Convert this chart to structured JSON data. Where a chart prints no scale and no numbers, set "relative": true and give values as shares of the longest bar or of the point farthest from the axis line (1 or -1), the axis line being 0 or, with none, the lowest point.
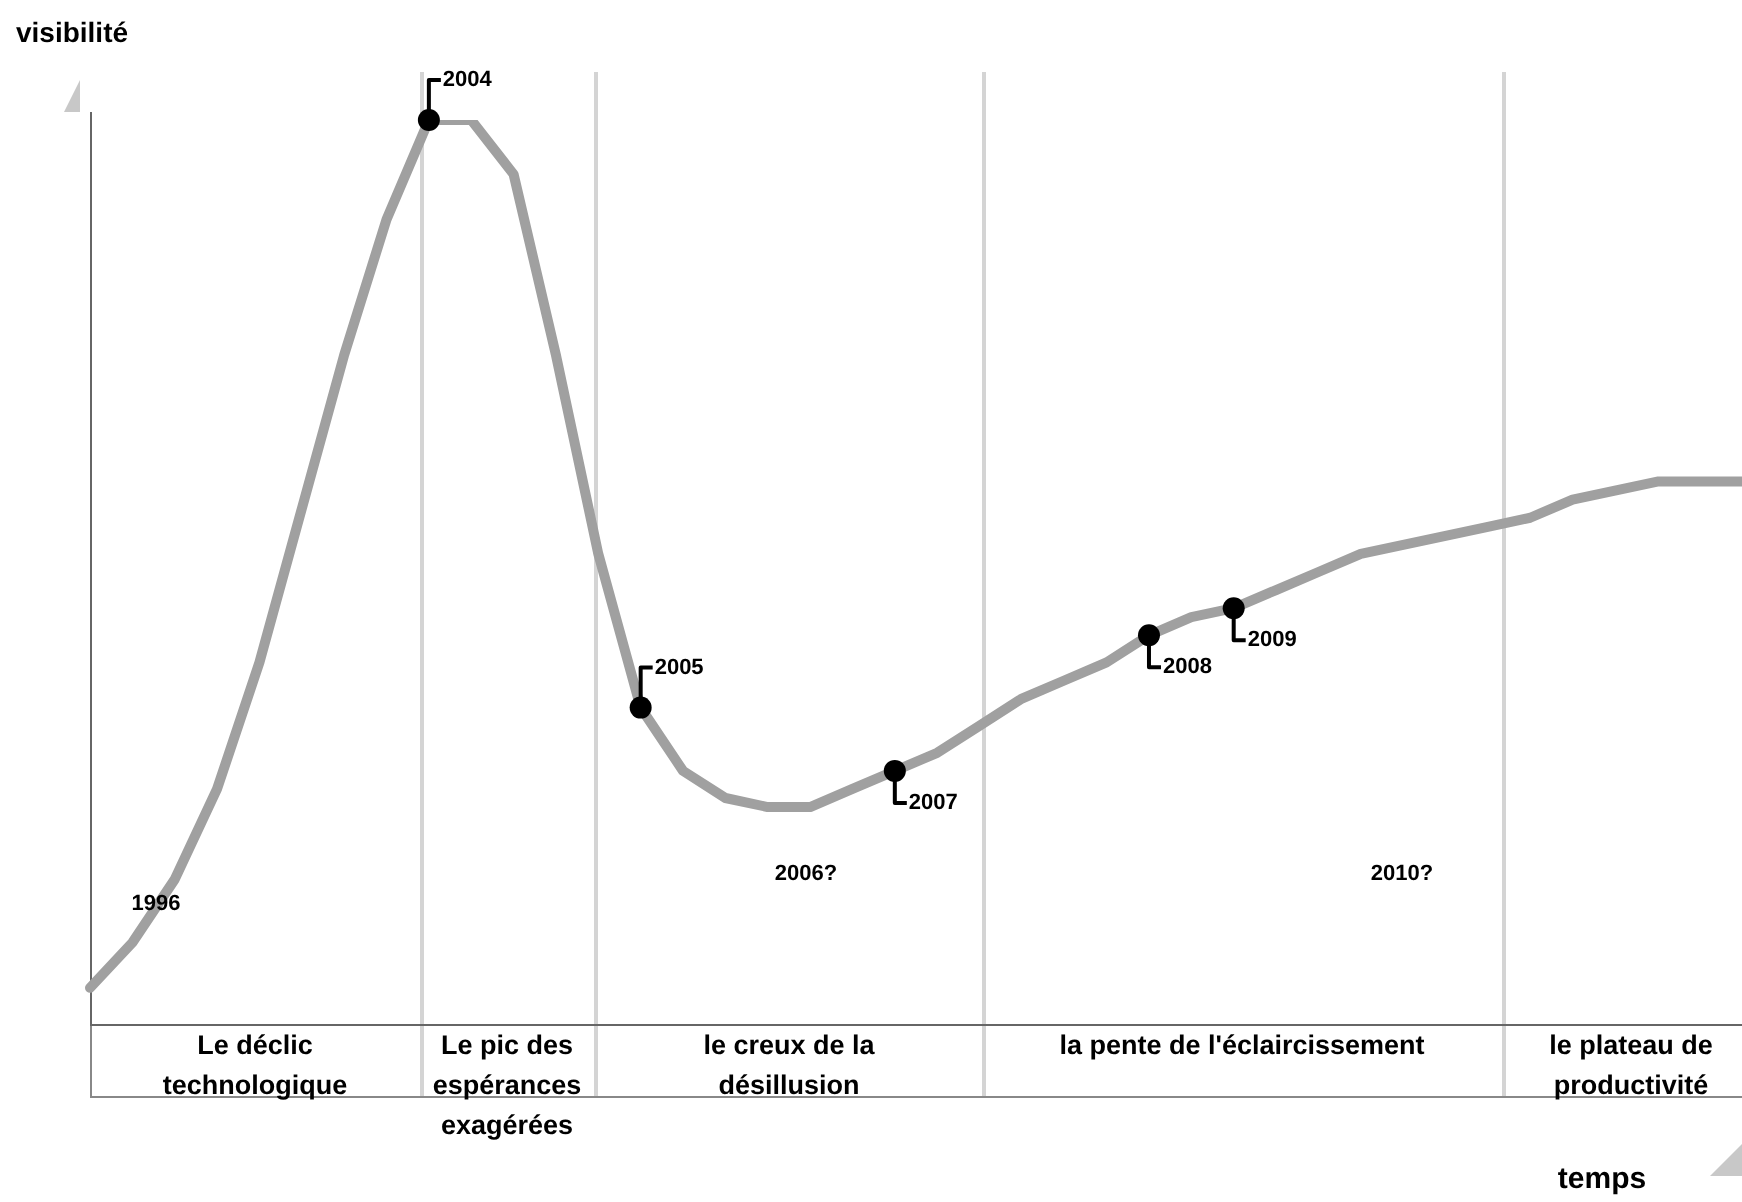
{
  "chart_data": {
    "type": "line",
    "relative": true,
    "ylabel": "visibilité",
    "legend": false,
    "grid": false,
    "line_style": "solid",
    "categories": [
      null,
      null,
      null,
      null,
      null,
      null,
      null,
      null,
      null,
      null,
      null,
      null,
      null,
      null,
      null,
      null,
      null,
      null,
      null,
      null,
      null,
      null,
      null,
      null,
      null,
      null,
      null,
      null,
      null,
      null,
      null,
      null,
      null,
      null,
      null,
      null,
      null,
      null,
      null,
      null
    ],
    "series": [
      {
        "color": "#a0a0a0",
        "values": [
          0.04,
          0.09,
          0.16,
          0.26,
          0.4,
          0.57,
          0.74,
          0.89,
          1,
          1,
          0.94,
          0.74,
          0.52,
          0.35,
          0.28,
          0.25,
          0.24,
          0.24,
          0.26,
          0.28,
          0.3,
          0.33,
          0.36,
          0.38,
          0.4,
          0.43,
          0.45,
          0.46,
          0.48,
          0.5,
          0.52,
          0.53,
          0.54,
          0.55,
          0.56,
          0.58,
          0.59,
          0.6,
          0.6,
          0.6
        ]
      }
    ],
    "annotations": [
      "1996",
      "2006?",
      "2010?",
      "Le déclic technologique",
      "Le pic des espérances exagérées",
      "le creux de la désillusion",
      "la pente de l'éclaircissement",
      "le plateau de productivité",
      "temps",
      "2004",
      "2005",
      "2007",
      "2008",
      "2009"
    ]
  }
}
